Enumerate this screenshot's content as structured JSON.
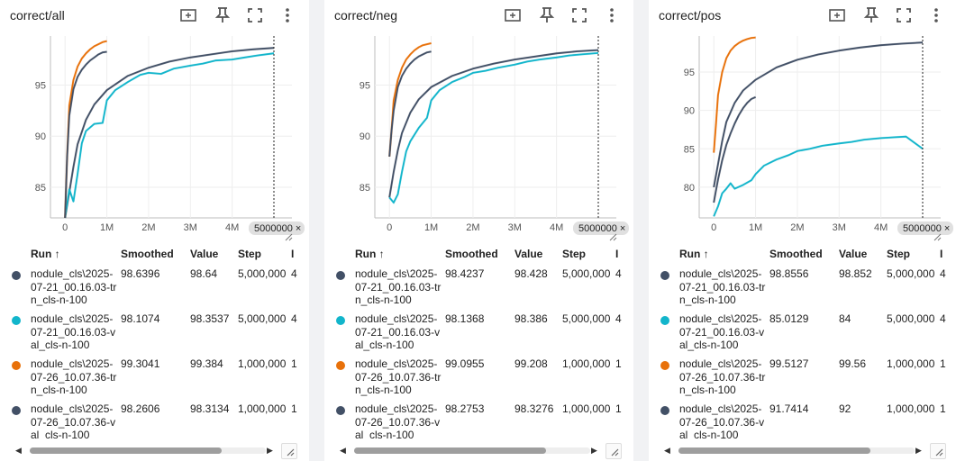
{
  "table_header": {
    "run": "Run ↑",
    "smoothed": "Smoothed",
    "value": "Value",
    "step": "Step",
    "extra": "I"
  },
  "run_names": [
    "nodule_cls\\2025-07-21_00.16.03-trn_cls-n-100",
    "nodule_cls\\2025-07-21_00.16.03-val_cls-n-100",
    "nodule_cls\\2025-07-26_10.07.36-trn_cls-n-100",
    "nodule_cls\\2025-07-26_10.07.36-val_cls-n-100"
  ],
  "run_colors": [
    "#425066",
    "#12b5cb",
    "#e8710a",
    "#425066"
  ],
  "hover_step_label": "5000000",
  "x_axis_ticks": [
    "0",
    "1M",
    "2M",
    "3M",
    "4M"
  ],
  "x_axis_tick_values": [
    0,
    1000000,
    2000000,
    3000000,
    4000000
  ],
  "chart_data": [
    {
      "type": "line",
      "title": "correct/all",
      "xlim": [
        -350000,
        5000000
      ],
      "ylim": [
        82,
        99.8
      ],
      "y_ticks": [
        85,
        90,
        95
      ],
      "series": [
        {
          "name": "nodule_cls\\2025-07-21_00.16.03-trn_cls-n-100",
          "color": "#425066",
          "x": [
            0,
            100000,
            200000,
            300000,
            500000,
            700000,
            1000000,
            1500000,
            2000000,
            2500000,
            3000000,
            3500000,
            4000000,
            4500000,
            5000000
          ],
          "y": [
            82,
            84.5,
            87,
            89.2,
            91.6,
            93.1,
            94.5,
            95.9,
            96.7,
            97.3,
            97.7,
            98,
            98.3,
            98.5,
            98.6396
          ]
        },
        {
          "name": "nodule_cls\\2025-07-21_00.16.03-val_cls-n-100",
          "color": "#12b5cb",
          "x": [
            0,
            100000,
            200000,
            300000,
            400000,
            500000,
            700000,
            900000,
            1000000,
            1200000,
            1500000,
            1800000,
            2000000,
            2300000,
            2600000,
            3000000,
            3300000,
            3600000,
            4000000,
            4300000,
            4600000,
            5000000
          ],
          "y": [
            82,
            84.8,
            83.6,
            86.3,
            89.3,
            90.5,
            91.2,
            91.3,
            93.5,
            94.5,
            95.3,
            96,
            96.2,
            96.1,
            96.6,
            96.9,
            97.1,
            97.4,
            97.5,
            97.7,
            97.9,
            98.1074
          ]
        },
        {
          "name": "nodule_cls\\2025-07-26_10.07.36-trn_cls-n-100",
          "color": "#e8710a",
          "x": [
            0,
            50000,
            100000,
            200000,
            300000,
            400000,
            500000,
            600000,
            700000,
            800000,
            900000,
            1000000
          ],
          "y": [
            82,
            88,
            93,
            95.5,
            96.8,
            97.6,
            98.1,
            98.5,
            98.8,
            99,
            99.2,
            99.3041
          ]
        },
        {
          "name": "nodule_cls\\2025-07-26_10.07.36-val_cls-n-100",
          "color": "#425066",
          "x": [
            0,
            50000,
            100000,
            200000,
            300000,
            400000,
            500000,
            600000,
            700000,
            800000,
            900000,
            1000000
          ],
          "y": [
            82,
            88,
            92,
            94.6,
            95.8,
            96.5,
            97,
            97.4,
            97.7,
            98,
            98.2,
            98.2606
          ]
        }
      ],
      "table": [
        {
          "smoothed": "98.6396",
          "value": "98.64",
          "step": "5,000,000",
          "extra": "4"
        },
        {
          "smoothed": "98.1074",
          "value": "98.3537",
          "step": "5,000,000",
          "extra": "4"
        },
        {
          "smoothed": "99.3041",
          "value": "99.384",
          "step": "1,000,000",
          "extra": "1"
        },
        {
          "smoothed": "98.2606",
          "value": "98.3134",
          "step": "1,000,000",
          "extra": "1"
        }
      ]
    },
    {
      "type": "line",
      "title": "correct/neg",
      "xlim": [
        -350000,
        5000000
      ],
      "ylim": [
        82,
        99.8
      ],
      "y_ticks": [
        85,
        90,
        95
      ],
      "series": [
        {
          "name": "nodule_cls\\2025-07-21_00.16.03-trn_cls-n-100",
          "color": "#425066",
          "x": [
            0,
            100000,
            200000,
            300000,
            500000,
            700000,
            1000000,
            1500000,
            2000000,
            2500000,
            3000000,
            3500000,
            4000000,
            4500000,
            5000000
          ],
          "y": [
            84,
            86.5,
            88.6,
            90.3,
            92.3,
            93.6,
            94.8,
            95.9,
            96.6,
            97.1,
            97.5,
            97.8,
            98.1,
            98.3,
            98.4237
          ]
        },
        {
          "name": "nodule_cls\\2025-07-21_00.16.03-val_cls-n-100",
          "color": "#12b5cb",
          "x": [
            0,
            100000,
            200000,
            300000,
            400000,
            500000,
            700000,
            900000,
            1000000,
            1200000,
            1500000,
            1800000,
            2000000,
            2300000,
            2600000,
            3000000,
            3300000,
            3600000,
            4000000,
            4300000,
            4600000,
            5000000
          ],
          "y": [
            84,
            83.5,
            84.3,
            86.5,
            88.5,
            89.5,
            90.8,
            91.8,
            93.5,
            94.5,
            95.3,
            95.8,
            96.2,
            96.4,
            96.7,
            97,
            97.3,
            97.5,
            97.7,
            97.9,
            98,
            98.1368
          ]
        },
        {
          "name": "nodule_cls\\2025-07-26_10.07.36-trn_cls-n-100",
          "color": "#e8710a",
          "x": [
            0,
            50000,
            100000,
            200000,
            300000,
            400000,
            500000,
            600000,
            700000,
            800000,
            900000,
            1000000
          ],
          "y": [
            88,
            90.5,
            93.5,
            95.5,
            96.7,
            97.5,
            98,
            98.4,
            98.7,
            98.9,
            99,
            99.0955
          ]
        },
        {
          "name": "nodule_cls\\2025-07-26_10.07.36-val_cls-n-100",
          "color": "#425066",
          "x": [
            0,
            50000,
            100000,
            200000,
            300000,
            400000,
            500000,
            600000,
            700000,
            800000,
            900000,
            1000000
          ],
          "y": [
            88,
            90.5,
            92.5,
            94.8,
            95.9,
            96.6,
            97.1,
            97.5,
            97.8,
            98,
            98.2,
            98.2753
          ]
        }
      ],
      "table": [
        {
          "smoothed": "98.4237",
          "value": "98.428",
          "step": "5,000,000",
          "extra": "4"
        },
        {
          "smoothed": "98.1368",
          "value": "98.386",
          "step": "5,000,000",
          "extra": "4"
        },
        {
          "smoothed": "99.0955",
          "value": "99.208",
          "step": "1,000,000",
          "extra": "1"
        },
        {
          "smoothed": "98.2753",
          "value": "98.3276",
          "step": "1,000,000",
          "extra": "1"
        }
      ]
    },
    {
      "type": "line",
      "title": "correct/pos",
      "xlim": [
        -350000,
        5000000
      ],
      "ylim": [
        76,
        99.7
      ],
      "y_ticks": [
        80,
        85,
        90,
        95
      ],
      "series": [
        {
          "name": "nodule_cls\\2025-07-21_00.16.03-trn_cls-n-100",
          "color": "#425066",
          "x": [
            0,
            100000,
            200000,
            300000,
            500000,
            700000,
            1000000,
            1500000,
            2000000,
            2500000,
            3000000,
            3500000,
            4000000,
            4500000,
            5000000
          ],
          "y": [
            80,
            83,
            86,
            88.5,
            91,
            92.6,
            94,
            95.6,
            96.6,
            97.3,
            97.8,
            98.2,
            98.5,
            98.7,
            98.8556
          ]
        },
        {
          "name": "nodule_cls\\2025-07-21_00.16.03-val_cls-n-100",
          "color": "#12b5cb",
          "x": [
            0,
            100000,
            200000,
            300000,
            400000,
            500000,
            700000,
            900000,
            1000000,
            1200000,
            1500000,
            1800000,
            2000000,
            2300000,
            2600000,
            3000000,
            3300000,
            3600000,
            4000000,
            4300000,
            4600000,
            5000000
          ],
          "y": [
            76.2,
            77.5,
            79.2,
            79.8,
            80.5,
            79.8,
            80.3,
            80.9,
            81.7,
            82.8,
            83.6,
            84.2,
            84.7,
            85,
            85.4,
            85.7,
            85.9,
            86.2,
            86.4,
            86.5,
            86.6,
            85.0129
          ]
        },
        {
          "name": "nodule_cls\\2025-07-26_10.07.36-trn_cls-n-100",
          "color": "#e8710a",
          "x": [
            0,
            50000,
            100000,
            200000,
            300000,
            400000,
            500000,
            600000,
            700000,
            800000,
            900000,
            1000000
          ],
          "y": [
            84.5,
            88,
            92,
            95,
            96.8,
            97.8,
            98.4,
            98.8,
            99.1,
            99.3,
            99.45,
            99.5127
          ]
        },
        {
          "name": "nodule_cls\\2025-07-26_10.07.36-val_cls-n-100",
          "color": "#425066",
          "x": [
            0,
            50000,
            100000,
            200000,
            300000,
            400000,
            500000,
            600000,
            700000,
            800000,
            900000,
            1000000
          ],
          "y": [
            78,
            79.5,
            81,
            83.5,
            85.5,
            87,
            88.3,
            89.4,
            90.3,
            91,
            91.5,
            91.7414
          ]
        }
      ],
      "table": [
        {
          "smoothed": "98.8556",
          "value": "98.852",
          "step": "5,000,000",
          "extra": "4"
        },
        {
          "smoothed": "85.0129",
          "value": "84",
          "step": "5,000,000",
          "extra": "4"
        },
        {
          "smoothed": "99.5127",
          "value": "99.56",
          "step": "1,000,000",
          "extra": "1"
        },
        {
          "smoothed": "91.7414",
          "value": "92",
          "step": "1,000,000",
          "extra": "1"
        }
      ]
    }
  ]
}
